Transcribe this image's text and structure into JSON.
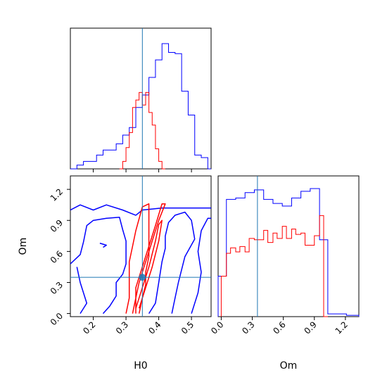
{
  "chart_data": {
    "type": "corner",
    "parameters": [
      "H0",
      "Om"
    ],
    "truth": {
      "H0": 0.35,
      "Om": 0.35
    },
    "colors": {
      "blue": "#0000ff",
      "red": "#ff0000",
      "truth": "#1f77b4"
    },
    "panels": {
      "h0_hist": {
        "xlim": [
          0.13,
          0.56
        ],
        "ticks": [
          0.2,
          0.3,
          0.4,
          0.5
        ],
        "series": [
          {
            "color": "blue",
            "edges": [
              0.13,
              0.15,
              0.17,
              0.19,
              0.21,
              0.23,
              0.25,
              0.27,
              0.29,
              0.31,
              0.33,
              0.35,
              0.37,
              0.39,
              0.41,
              0.43,
              0.45,
              0.47,
              0.49,
              0.51,
              0.53,
              0.55,
              0.57
            ],
            "values": [
              0,
              0.03,
              0.06,
              0.06,
              0.11,
              0.15,
              0.15,
              0.2,
              0.27,
              0.33,
              0.49,
              0.59,
              0.73,
              0.87,
              1.0,
              0.93,
              0.92,
              0.62,
              0.43,
              0.11,
              0.09,
              0
            ]
          },
          {
            "color": "red",
            "edges": [
              0.28,
              0.29,
              0.3,
              0.31,
              0.32,
              0.33,
              0.34,
              0.35,
              0.36,
              0.37,
              0.38,
              0.39,
              0.4,
              0.41,
              0.42
            ],
            "values": [
              0,
              0.06,
              0.17,
              0.29,
              0.49,
              0.55,
              0.61,
              0.51,
              0.61,
              0.45,
              0.35,
              0.16,
              0.06,
              0
            ]
          }
        ]
      },
      "om_hist": {
        "xlim": [
          -0.03,
          1.33
        ],
        "ticks": [
          0.0,
          0.3,
          0.6,
          0.9,
          1.2
        ],
        "labels": [
          "0.0",
          "0.3",
          "0.6",
          "0.9",
          "1.2"
        ],
        "series": [
          {
            "color": "blue",
            "edges": [
              -0.03,
              0.05,
              0.14,
              0.23,
              0.32,
              0.41,
              0.5,
              0.59,
              0.68,
              0.77,
              0.86,
              0.95,
              1.03,
              1.12,
              1.21,
              1.33
            ],
            "values": [
              0.3,
              0.87,
              0.88,
              0.92,
              0.94,
              0.87,
              0.84,
              0.82,
              0.88,
              0.93,
              0.95,
              0.57,
              0.02,
              0.02,
              0.01
            ]
          },
          {
            "color": "red",
            "edges": [
              0.0,
              0.05,
              0.09,
              0.14,
              0.18,
              0.23,
              0.27,
              0.32,
              0.36,
              0.41,
              0.45,
              0.5,
              0.54,
              0.59,
              0.63,
              0.68,
              0.72,
              0.77,
              0.81,
              0.86,
              0.9,
              0.95,
              0.99,
              1.03
            ],
            "values": [
              0.3,
              0.47,
              0.51,
              0.48,
              0.52,
              0.48,
              0.58,
              0.57,
              0.57,
              0.64,
              0.55,
              0.62,
              0.58,
              0.67,
              0.58,
              0.65,
              0.61,
              0.62,
              0.53,
              0.53,
              0.6,
              0.75,
              0
            ]
          }
        ]
      },
      "joint": {
        "xlim": [
          0.13,
          0.56
        ],
        "ylim": [
          -0.03,
          1.33
        ],
        "xticks": [
          0.2,
          0.3,
          0.4,
          0.5
        ],
        "yticks": [
          0.0,
          0.3,
          0.6,
          0.9,
          1.2
        ],
        "yticklabels": [
          "0.0",
          "0.3",
          "0.6",
          "0.9",
          "1.2"
        ],
        "truth_point": [
          0.35,
          0.35
        ],
        "contours": [
          {
            "color": "blue",
            "points": [
              [
                0.13,
                1.0
              ],
              [
                0.16,
                1.05
              ],
              [
                0.2,
                1.0
              ],
              [
                0.24,
                1.05
              ],
              [
                0.29,
                1.0
              ],
              [
                0.33,
                0.95
              ],
              [
                0.35,
                1.0
              ],
              [
                0.41,
                1.02
              ],
              [
                0.47,
                1.02
              ],
              [
                0.56,
                1.02
              ]
            ]
          },
          {
            "color": "blue",
            "points": [
              [
                0.13,
                0.48
              ],
              [
                0.16,
                0.57
              ],
              [
                0.17,
                0.69
              ],
              [
                0.18,
                0.85
              ],
              [
                0.2,
                0.9
              ],
              [
                0.24,
                0.92
              ],
              [
                0.28,
                0.93
              ],
              [
                0.29,
                0.81
              ],
              [
                0.3,
                0.7
              ],
              [
                0.3,
                0.57
              ],
              [
                0.3,
                0.48
              ],
              [
                0.29,
                0.38
              ],
              [
                0.27,
                0.3
              ],
              [
                0.27,
                0.17
              ],
              [
                0.25,
                0.07
              ],
              [
                0.23,
                0.0
              ]
            ]
          },
          {
            "color": "blue",
            "points": [
              [
                0.16,
                0.0
              ],
              [
                0.18,
                0.1
              ],
              [
                0.16,
                0.3
              ],
              [
                0.15,
                0.45
              ]
            ]
          },
          {
            "color": "blue",
            "points": [
              [
                0.22,
                0.68
              ],
              [
                0.24,
                0.66
              ],
              [
                0.23,
                0.64
              ]
            ]
          },
          {
            "color": "blue",
            "points": [
              [
                0.37,
                0.0
              ],
              [
                0.39,
                0.1
              ],
              [
                0.4,
                0.3
              ],
              [
                0.41,
                0.5
              ],
              [
                0.42,
                0.63
              ],
              [
                0.42,
                0.75
              ],
              [
                0.43,
                0.88
              ],
              [
                0.45,
                0.95
              ],
              [
                0.48,
                0.98
              ],
              [
                0.5,
                0.9
              ],
              [
                0.51,
                0.72
              ],
              [
                0.48,
                0.55
              ],
              [
                0.46,
                0.3
              ],
              [
                0.45,
                0.15
              ],
              [
                0.44,
                0.0
              ]
            ]
          },
          {
            "color": "blue",
            "points": [
              [
                0.5,
                0.0
              ],
              [
                0.52,
                0.2
              ],
              [
                0.53,
                0.4
              ],
              [
                0.52,
                0.6
              ],
              [
                0.53,
                0.8
              ],
              [
                0.55,
                0.92
              ],
              [
                0.56,
                0.92
              ]
            ]
          },
          {
            "color": "red",
            "points": [
              [
                0.3,
                0.0
              ],
              [
                0.31,
                0.15
              ],
              [
                0.31,
                0.3
              ],
              [
                0.31,
                0.5
              ],
              [
                0.32,
                0.65
              ],
              [
                0.33,
                0.8
              ],
              [
                0.35,
                1.03
              ],
              [
                0.37,
                1.06
              ],
              [
                0.37,
                0.95
              ],
              [
                0.37,
                0.75
              ],
              [
                0.37,
                0.55
              ],
              [
                0.36,
                0.4
              ],
              [
                0.36,
                0.28
              ],
              [
                0.35,
                0.15
              ],
              [
                0.34,
                0.0
              ]
            ]
          },
          {
            "color": "red",
            "points": [
              [
                0.32,
                0.0
              ],
              [
                0.33,
                0.15
              ],
              [
                0.34,
                0.3
              ],
              [
                0.36,
                0.5
              ],
              [
                0.38,
                0.7
              ],
              [
                0.4,
                0.9
              ],
              [
                0.42,
                1.06
              ],
              [
                0.41,
                1.06
              ],
              [
                0.39,
                0.85
              ],
              [
                0.37,
                0.65
              ],
              [
                0.35,
                0.45
              ],
              [
                0.33,
                0.25
              ],
              [
                0.33,
                0.0
              ]
            ]
          },
          {
            "color": "red",
            "points": [
              [
                0.33,
                0.05
              ],
              [
                0.35,
                0.25
              ],
              [
                0.37,
                0.45
              ],
              [
                0.39,
                0.7
              ],
              [
                0.4,
                0.86
              ],
              [
                0.41,
                0.9
              ],
              [
                0.4,
                0.7
              ],
              [
                0.38,
                0.45
              ],
              [
                0.36,
                0.25
              ],
              [
                0.34,
                0.05
              ]
            ]
          }
        ]
      }
    }
  }
}
